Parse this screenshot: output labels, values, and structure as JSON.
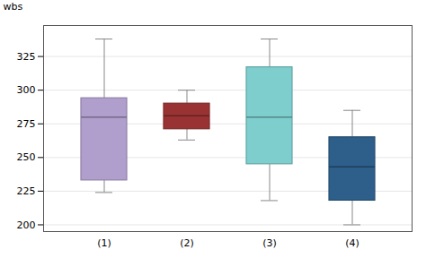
{
  "chart_data": {
    "type": "box",
    "ylabel": "wbs",
    "categories": [
      "(1)",
      "(2)",
      "(3)",
      "(4)"
    ],
    "whisker_low": [
      224,
      263,
      218,
      200
    ],
    "q1": [
      233,
      271,
      245,
      218
    ],
    "median": [
      280,
      281,
      280,
      243
    ],
    "q3": [
      294,
      290,
      317,
      265
    ],
    "whisker_high": [
      338,
      300,
      338,
      285
    ],
    "colors": [
      "#b09fcc",
      "#993333",
      "#7ecece",
      "#2d5f8a"
    ],
    "ylim": [
      195,
      348
    ],
    "yticks": [
      200,
      225,
      250,
      275,
      300,
      325
    ],
    "grid": true
  }
}
